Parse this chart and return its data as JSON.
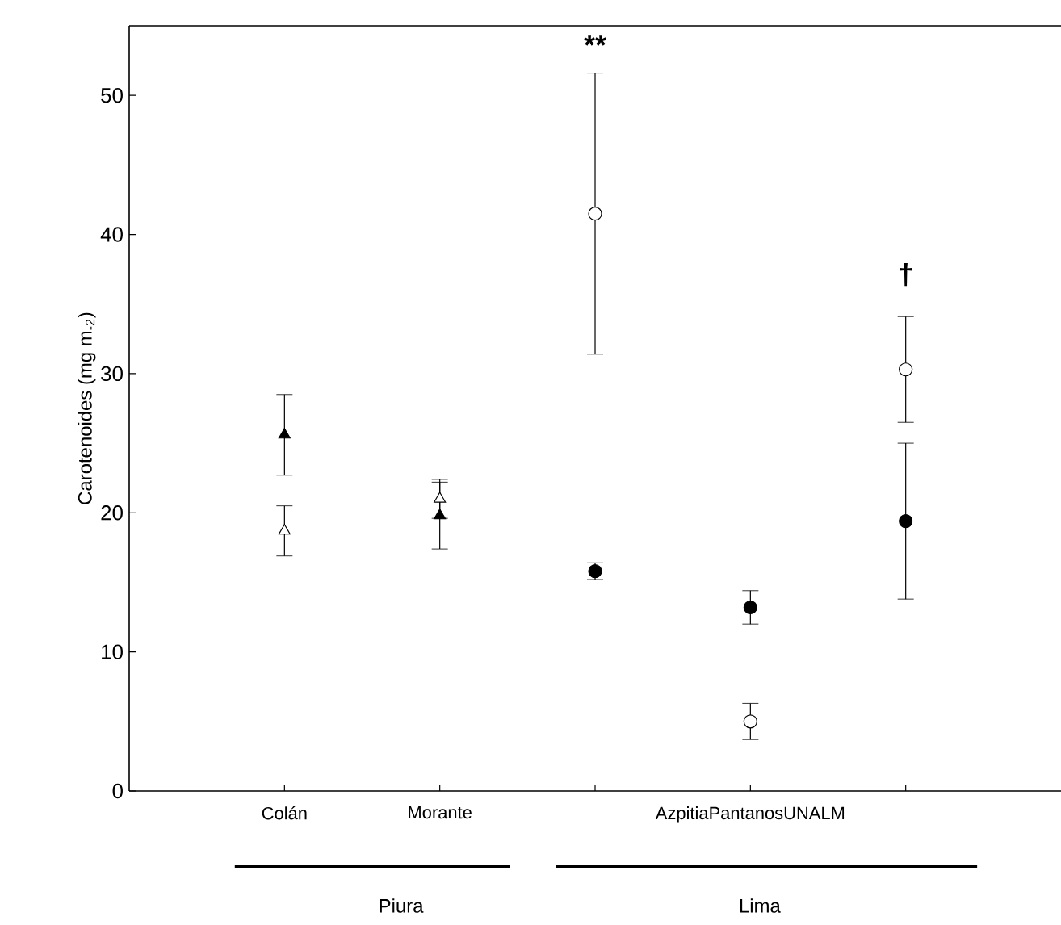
{
  "chart_data": {
    "type": "scatter",
    "ylabel": "Carotenoides (mg m$_{-2}$)",
    "categories": [
      "Colán",
      "Morante",
      null,
      "AzpitiaPantanosUNALM",
      null
    ],
    "ylim": [
      0,
      55
    ],
    "yticks": [
      0,
      10,
      20,
      30,
      40,
      50
    ],
    "series": [
      {
        "color": "#000000",
        "marker": "triangle",
        "values": [
          25.6,
          19.8,
          null,
          null,
          null
        ],
        "errors": [
          2.9,
          2.4,
          null,
          null,
          null
        ]
      },
      {
        "color": "#ffffff",
        "marker": "triangle",
        "values": [
          18.7,
          21.0,
          null,
          null,
          null
        ],
        "errors": [
          1.8,
          1.4,
          null,
          null,
          null
        ]
      },
      {
        "color": "#000000",
        "marker": "circle",
        "values": [
          null,
          null,
          15.8,
          13.2,
          19.4
        ],
        "errors": [
          null,
          null,
          0.6,
          1.2,
          5.6
        ]
      },
      {
        "color": "#ffffff",
        "marker": "circle",
        "values": [
          null,
          null,
          41.5,
          5.0,
          30.3
        ],
        "errors": [
          null,
          null,
          10.1,
          1.3,
          3.8
        ]
      }
    ],
    "annotations": [
      "**",
      "†",
      "Piura",
      "Lima"
    ]
  }
}
